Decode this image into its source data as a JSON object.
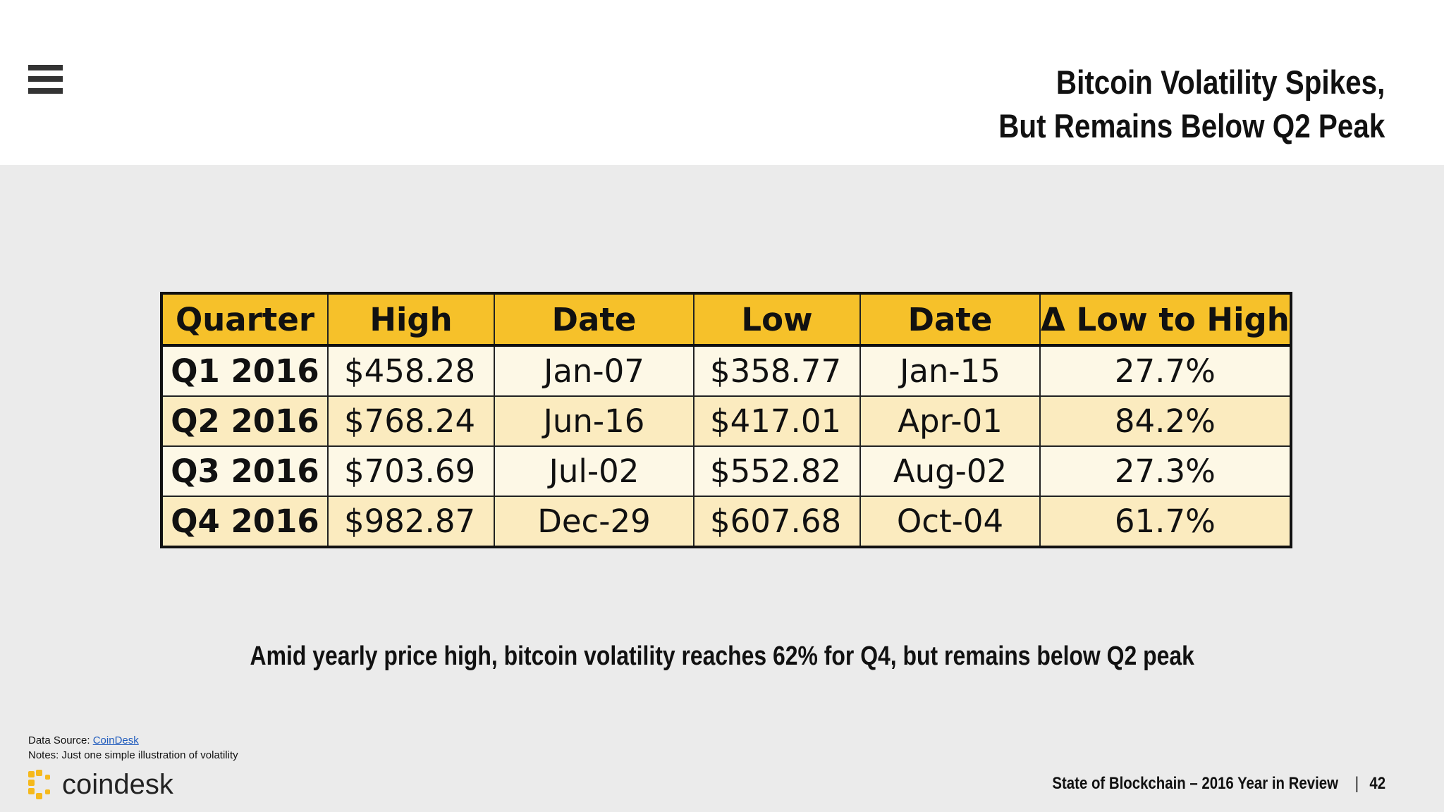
{
  "header": {
    "title_line1": "Bitcoin Volatility Spikes,",
    "title_line2": "But Remains Below Q2 Peak"
  },
  "table": {
    "headers": [
      "Quarter",
      "High",
      "Date",
      "Low",
      "Date",
      "Δ Low to High"
    ],
    "rows": [
      {
        "quarter": "Q1 2016",
        "high": "$458.28",
        "high_date": "Jan-07",
        "low": "$358.77",
        "low_date": "Jan-15",
        "delta": "27.7%"
      },
      {
        "quarter": "Q2 2016",
        "high": "$768.24",
        "high_date": "Jun-16",
        "low": "$417.01",
        "low_date": "Apr-01",
        "delta": "84.2%"
      },
      {
        "quarter": "Q3 2016",
        "high": "$703.69",
        "high_date": "Jul-02",
        "low": "$552.82",
        "low_date": "Aug-02",
        "delta": "27.3%"
      },
      {
        "quarter": "Q4 2016",
        "high": "$982.87",
        "high_date": "Dec-29",
        "low": "$607.68",
        "low_date": "Oct-04",
        "delta": "61.7%"
      }
    ],
    "header_color": "#f6c12a",
    "row_color_odd": "#fdf8e6",
    "row_color_even": "#fbebbf"
  },
  "subtitle": "Amid yearly price high, bitcoin volatility reaches 62% for Q4, but remains below Q2 peak",
  "notes": {
    "source_prefix": "Data Source: ",
    "source_link": "CoinDesk",
    "note": "Notes: Just one simple illustration of volatility"
  },
  "logo": {
    "text": "coindesk",
    "icon": "coindesk-logo-icon"
  },
  "footer": {
    "report": "State of Blockchain – 2016 Year in Review",
    "separator": "|",
    "page_number": "42"
  },
  "icons": {
    "menu": "hamburger-menu-icon"
  }
}
